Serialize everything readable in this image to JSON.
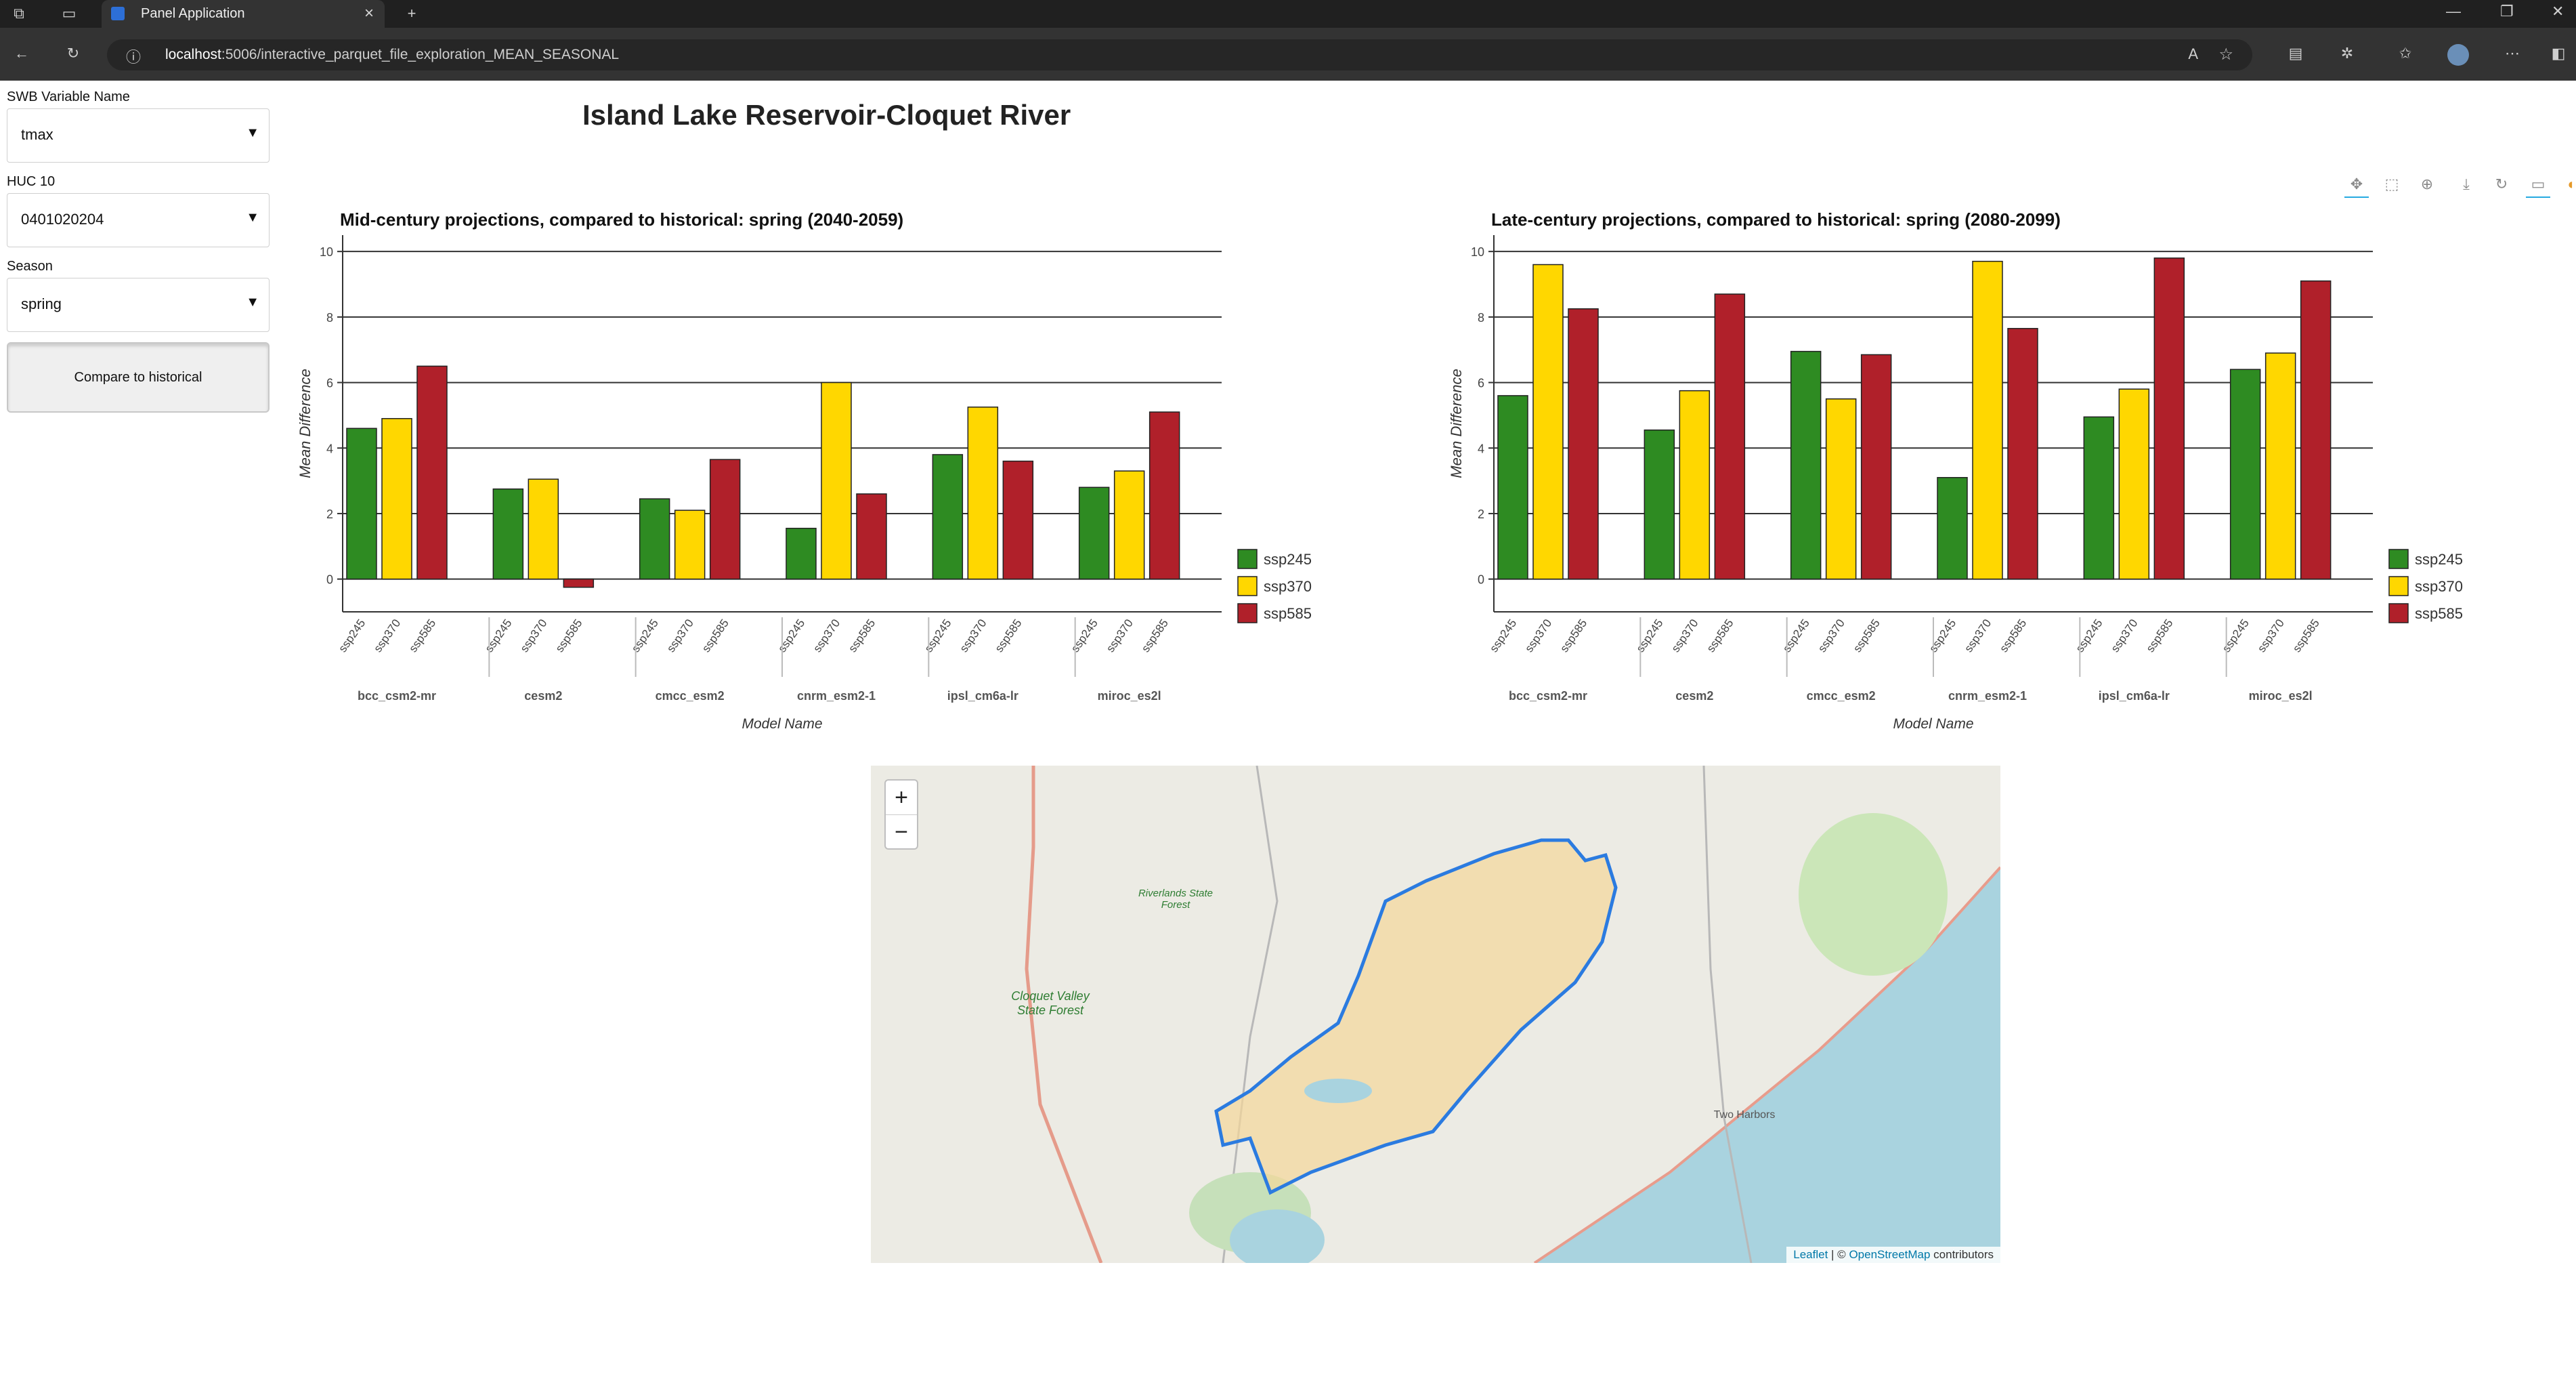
{
  "browser": {
    "tab_title": "Panel Application",
    "url_host": "localhost",
    "url_path": ":5006/interactive_parquet_file_exploration_MEAN_SEASONAL"
  },
  "sidebar": {
    "variable": {
      "label": "SWB Variable Name",
      "value": "tmax"
    },
    "huc": {
      "label": "HUC 10",
      "value": "0401020204"
    },
    "season": {
      "label": "Season",
      "value": "spring"
    },
    "compare_button": "Compare to historical"
  },
  "page_title": "Island Lake Reservoir-Cloquet River",
  "toolbar": [
    "pan-icon",
    "box-zoom-icon",
    "wheel-zoom-icon",
    "save-icon",
    "reset-icon",
    "hover-icon",
    "bokeh-logo-icon"
  ],
  "chart_data": [
    {
      "type": "bar",
      "title": "Mid-century projections, compared to historical: spring (2040-2059)",
      "xlabel": "Model Name",
      "ylabel": "Mean Difference",
      "ylim": [
        -1,
        10.5
      ],
      "yticks": [
        0,
        2,
        4,
        6,
        8,
        10
      ],
      "grid": "horizontal",
      "legend_position": "right",
      "categories": [
        "bcc_csm2-mr",
        "cesm2",
        "cmcc_esm2",
        "cnrm_esm2-1",
        "ipsl_cm6a-lr",
        "miroc_es2l"
      ],
      "series": [
        {
          "name": "ssp245",
          "color": "#2e8b22",
          "values": [
            4.6,
            2.75,
            2.45,
            1.55,
            3.8,
            2.8
          ]
        },
        {
          "name": "ssp370",
          "color": "#ffd700",
          "values": [
            4.9,
            3.05,
            2.1,
            6.0,
            5.25,
            3.3
          ]
        },
        {
          "name": "ssp585",
          "color": "#b0202a",
          "values": [
            6.5,
            -0.25,
            3.65,
            2.6,
            3.6,
            5.1
          ]
        }
      ]
    },
    {
      "type": "bar",
      "title": "Late-century projections, compared to historical: spring (2080-2099)",
      "xlabel": "Model Name",
      "ylabel": "Mean Difference",
      "ylim": [
        -1,
        10.5
      ],
      "yticks": [
        0,
        2,
        4,
        6,
        8,
        10
      ],
      "grid": "horizontal",
      "legend_position": "right",
      "categories": [
        "bcc_csm2-mr",
        "cesm2",
        "cmcc_esm2",
        "cnrm_esm2-1",
        "ipsl_cm6a-lr",
        "miroc_es2l"
      ],
      "series": [
        {
          "name": "ssp245",
          "color": "#2e8b22",
          "values": [
            5.6,
            4.55,
            6.95,
            3.1,
            4.95,
            6.4
          ]
        },
        {
          "name": "ssp370",
          "color": "#ffd700",
          "values": [
            9.6,
            5.75,
            5.5,
            9.7,
            5.8,
            6.9
          ]
        },
        {
          "name": "ssp585",
          "color": "#b0202a",
          "values": [
            8.25,
            8.7,
            6.85,
            7.65,
            9.8,
            9.1
          ]
        }
      ]
    }
  ],
  "map": {
    "zoom_in": "+",
    "zoom_out": "−",
    "labels": {
      "riverlands": "Riverlands State Forest",
      "cloquet": "Cloquet Valley State Forest",
      "two_harbors": "Two Harbors"
    },
    "attribution": {
      "leaflet": "Leaflet",
      "sep": " | © ",
      "osm": "OpenStreetMap",
      "contrib": " contributors"
    }
  }
}
